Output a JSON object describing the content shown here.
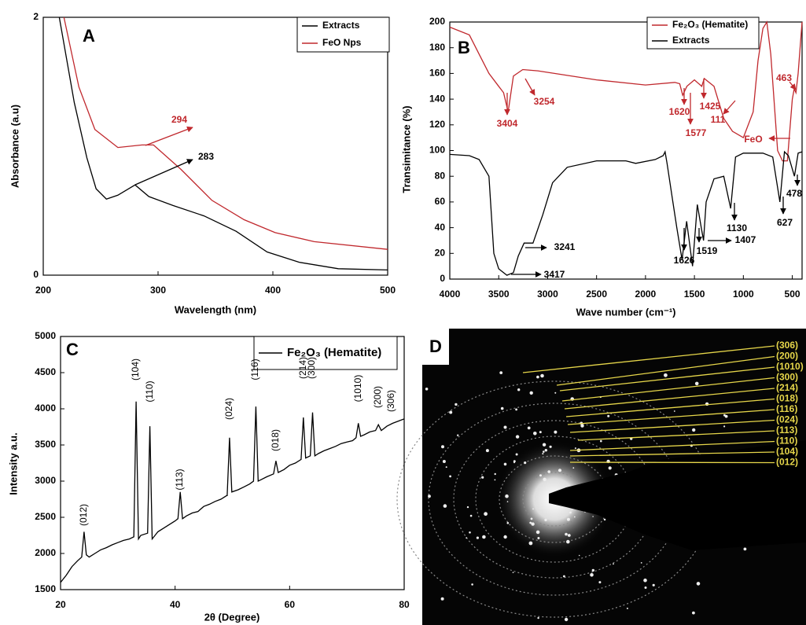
{
  "chart_data": [
    {
      "type": "line",
      "panel_label": "A",
      "xlabel": "Wavelength (nm)",
      "ylabel": "Absorbance (a.u)",
      "xlim": [
        200,
        500
      ],
      "xticks": [
        200,
        300,
        400,
        500
      ],
      "ylim": [
        0,
        2
      ],
      "yticks": [
        0,
        2
      ],
      "series": [
        {
          "name": "Extracts",
          "color": "#000000",
          "x": [
            214,
            227,
            238,
            246,
            255,
            265,
            280,
            292,
            313,
            340,
            368,
            395,
            423,
            457,
            500
          ],
          "values": [
            2.0,
            1.34,
            0.91,
            0.67,
            0.59,
            0.62,
            0.7,
            0.61,
            0.54,
            0.46,
            0.34,
            0.18,
            0.1,
            0.05,
            0.04
          ]
        },
        {
          "name": "FeO Nps",
          "color": "#c0282d",
          "x": [
            218,
            231,
            245,
            265,
            286,
            296,
            320,
            347,
            375,
            402,
            436,
            500
          ],
          "values": [
            2.0,
            1.46,
            1.13,
            0.99,
            1.01,
            1.01,
            0.82,
            0.58,
            0.43,
            0.33,
            0.26,
            0.2
          ]
        }
      ],
      "annotations": [
        {
          "text": "294",
          "color": "#c0282d"
        },
        {
          "text": "283",
          "color": "#000000"
        }
      ]
    },
    {
      "type": "line",
      "panel_label": "B",
      "xlabel": "Wave number (cm⁻¹)",
      "ylabel": "Transimitance (%)",
      "xlim": [
        4000,
        400
      ],
      "xticks": [
        4000,
        3500,
        3000,
        2500,
        2000,
        1500,
        1000,
        500
      ],
      "ylim": [
        0,
        200
      ],
      "yticks": [
        0,
        20,
        40,
        60,
        80,
        100,
        120,
        140,
        160,
        180,
        200
      ],
      "series": [
        {
          "name": "Fe₂O₃ (Hematite)",
          "color": "#c0282d",
          "x": [
            4000,
            3800,
            3700,
            3600,
            3500,
            3450,
            3404,
            3350,
            3254,
            3100,
            2500,
            2000,
            1700,
            1650,
            1620,
            1577,
            1500,
            1425,
            1400,
            1300,
            1200,
            1111,
            1000,
            900,
            850,
            800,
            760,
            720,
            650,
            600,
            550,
            500,
            480,
            463,
            440,
            400
          ],
          "values": [
            196,
            190,
            175,
            160,
            150,
            145,
            130,
            158,
            163,
            162,
            155,
            151,
            153,
            152,
            143,
            150,
            155,
            150,
            156,
            150,
            125,
            115,
            110,
            130,
            170,
            195,
            200,
            175,
            100,
            92,
            92,
            140,
            148,
            145,
            160,
            200
          ]
        },
        {
          "name": "Extracts",
          "color": "#000000",
          "x": [
            4000,
            3800,
            3700,
            3600,
            3550,
            3500,
            3417,
            3350,
            3300,
            3241,
            3150,
            3050,
            2950,
            2800,
            2500,
            2200,
            2100,
            1900,
            1820,
            1800,
            1780,
            1720,
            1680,
            1626,
            1580,
            1519,
            1470,
            1430,
            1407,
            1380,
            1300,
            1200,
            1130,
            1080,
            1000,
            800,
            700,
            627,
            580,
            540,
            478,
            440,
            400
          ],
          "values": [
            97,
            96,
            93,
            80,
            20,
            8,
            3,
            5,
            18,
            28,
            28,
            50,
            75,
            87,
            92,
            92,
            90,
            93,
            96,
            99,
            90,
            60,
            40,
            15,
            45,
            10,
            58,
            40,
            30,
            60,
            78,
            80,
            55,
            95,
            98,
            98,
            95,
            60,
            99,
            96,
            80,
            98,
            99
          ]
        }
      ],
      "annotations": [
        {
          "text": "3404",
          "color": "#c0282d"
        },
        {
          "text": "3254",
          "color": "#c0282d"
        },
        {
          "text": "1620",
          "color": "#c0282d"
        },
        {
          "text": "1577",
          "color": "#c0282d"
        },
        {
          "text": "1425",
          "color": "#c0282d"
        },
        {
          "text": "111",
          "color": "#c0282d"
        },
        {
          "text": "FeO",
          "color": "#c0282d"
        },
        {
          "text": "463",
          "color": "#c0282d"
        },
        {
          "text": "3241",
          "color": "#000000"
        },
        {
          "text": "3417",
          "color": "#000000"
        },
        {
          "text": "1626",
          "color": "#000000"
        },
        {
          "text": "1519",
          "color": "#000000"
        },
        {
          "text": "1407",
          "color": "#000000"
        },
        {
          "text": "1130",
          "color": "#000000"
        },
        {
          "text": "627",
          "color": "#000000"
        },
        {
          "text": "478",
          "color": "#000000"
        }
      ]
    },
    {
      "type": "line",
      "panel_label": "C",
      "xlabel": "2θ (Degree)",
      "ylabel": "Intensity a.u.",
      "xlim": [
        20,
        80
      ],
      "xticks": [
        20,
        40,
        60,
        80
      ],
      "ylim": [
        1500,
        5000
      ],
      "yticks": [
        1500,
        2000,
        2500,
        3000,
        3500,
        4000,
        4500,
        5000
      ],
      "series": [
        {
          "name": "Fe₂O₃ (Hematite)",
          "color": "#000000",
          "x": [
            20,
            21,
            22,
            23,
            23.7,
            24.1,
            24.5,
            25,
            26,
            27,
            28,
            29,
            30,
            31,
            32,
            32.8,
            33.2,
            33.6,
            34,
            35.2,
            35.6,
            36,
            37,
            38,
            39,
            40,
            40.5,
            40.9,
            41.3,
            42,
            43,
            44,
            45,
            46,
            47,
            48,
            49,
            49.1,
            49.5,
            49.9,
            51,
            52,
            53,
            53.7,
            54.1,
            54.5,
            55,
            56,
            57.2,
            57.6,
            58,
            59,
            60,
            61,
            62,
            62.4,
            62.8,
            63.6,
            64,
            64.4,
            65,
            66,
            67,
            68,
            69,
            70,
            71,
            71.6,
            72,
            72.4,
            73,
            74,
            75,
            75.5,
            76,
            77,
            78,
            79,
            80
          ],
          "values": [
            1600,
            1700,
            1820,
            1900,
            1950,
            2300,
            1980,
            1950,
            2000,
            2050,
            2080,
            2120,
            2150,
            2180,
            2200,
            2230,
            4100,
            2200,
            2250,
            2280,
            3760,
            2200,
            2300,
            2350,
            2400,
            2450,
            2480,
            2850,
            2480,
            2520,
            2560,
            2580,
            2650,
            2680,
            2720,
            2750,
            2800,
            2800,
            3600,
            2850,
            2880,
            2920,
            2960,
            3000,
            4030,
            3000,
            3020,
            3060,
            3100,
            3280,
            3120,
            3160,
            3220,
            3250,
            3300,
            3880,
            3320,
            3350,
            3950,
            3350,
            3380,
            3420,
            3450,
            3480,
            3520,
            3540,
            3560,
            3600,
            3800,
            3620,
            3640,
            3680,
            3700,
            3780,
            3700,
            3760,
            3800,
            3830,
            3860
          ]
        }
      ],
      "annotations": [
        {
          "text": "(012)",
          "color": "#000000"
        },
        {
          "text": "(104)",
          "color": "#000000"
        },
        {
          "text": "(110)",
          "color": "#000000"
        },
        {
          "text": "(113)",
          "color": "#000000"
        },
        {
          "text": "(024)",
          "color": "#000000"
        },
        {
          "text": "(116)",
          "color": "#000000"
        },
        {
          "text": "(018)",
          "color": "#000000"
        },
        {
          "text": "(214)",
          "color": "#000000"
        },
        {
          "text": "(300)",
          "color": "#000000"
        },
        {
          "text": "(1010)",
          "color": "#000000"
        },
        {
          "text": "(200)",
          "color": "#000000"
        },
        {
          "text": "(306)",
          "color": "#000000"
        }
      ]
    }
  ],
  "panel_d": {
    "label": "D",
    "reflections": [
      "(306)",
      "(200)",
      "(1010)",
      "(300)",
      "(214)",
      "(018)",
      "(116)",
      "(024)",
      "(113)",
      "(110)",
      "(104)",
      "(012)"
    ]
  }
}
